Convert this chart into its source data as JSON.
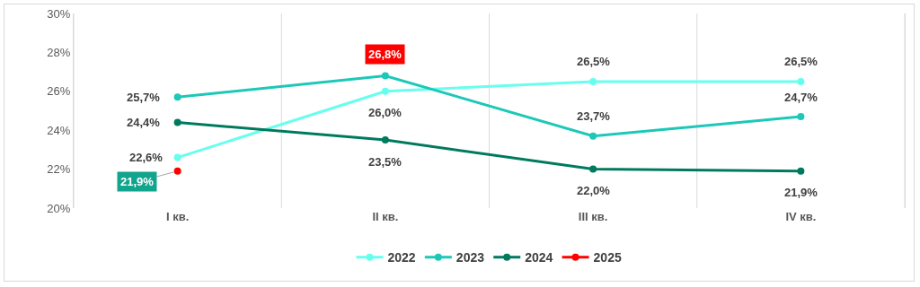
{
  "chart_data": {
    "type": "line",
    "categories": [
      "I кв.",
      "II кв.",
      "III кв.",
      "IV кв."
    ],
    "series": [
      {
        "name": "2022",
        "color": "#66ffee",
        "values": [
          22.6,
          26.0,
          26.5,
          26.5
        ],
        "value_labels": [
          "22,6%",
          "26,0%",
          "26,5%",
          "26,5%"
        ]
      },
      {
        "name": "2023",
        "color": "#1cc8b8",
        "values": [
          25.7,
          26.8,
          23.7,
          24.7
        ],
        "value_labels": [
          "25,7%",
          "26,8%",
          "23,7%",
          "24,7%"
        ]
      },
      {
        "name": "2024",
        "color": "#007a5e",
        "values": [
          24.4,
          23.5,
          22.0,
          21.9
        ],
        "value_labels": [
          "24,4%",
          "23,5%",
          "22,0%",
          "21,9%"
        ]
      },
      {
        "name": "2025",
        "color": "#ff0000",
        "values": [
          21.9,
          null,
          null,
          null
        ],
        "value_labels": [
          "21,9%",
          null,
          null,
          null
        ]
      }
    ],
    "ylim": [
      20,
      30
    ],
    "yticks": [
      {
        "value": 20,
        "label": "20%"
      },
      {
        "value": 22,
        "label": "22%"
      },
      {
        "value": 24,
        "label": "24%"
      },
      {
        "value": 26,
        "label": "26%"
      },
      {
        "value": 28,
        "label": "28%"
      },
      {
        "value": 30,
        "label": "30%"
      }
    ],
    "grid": "x",
    "legend": "bottom",
    "marker": "circle",
    "line_style": "solid"
  }
}
